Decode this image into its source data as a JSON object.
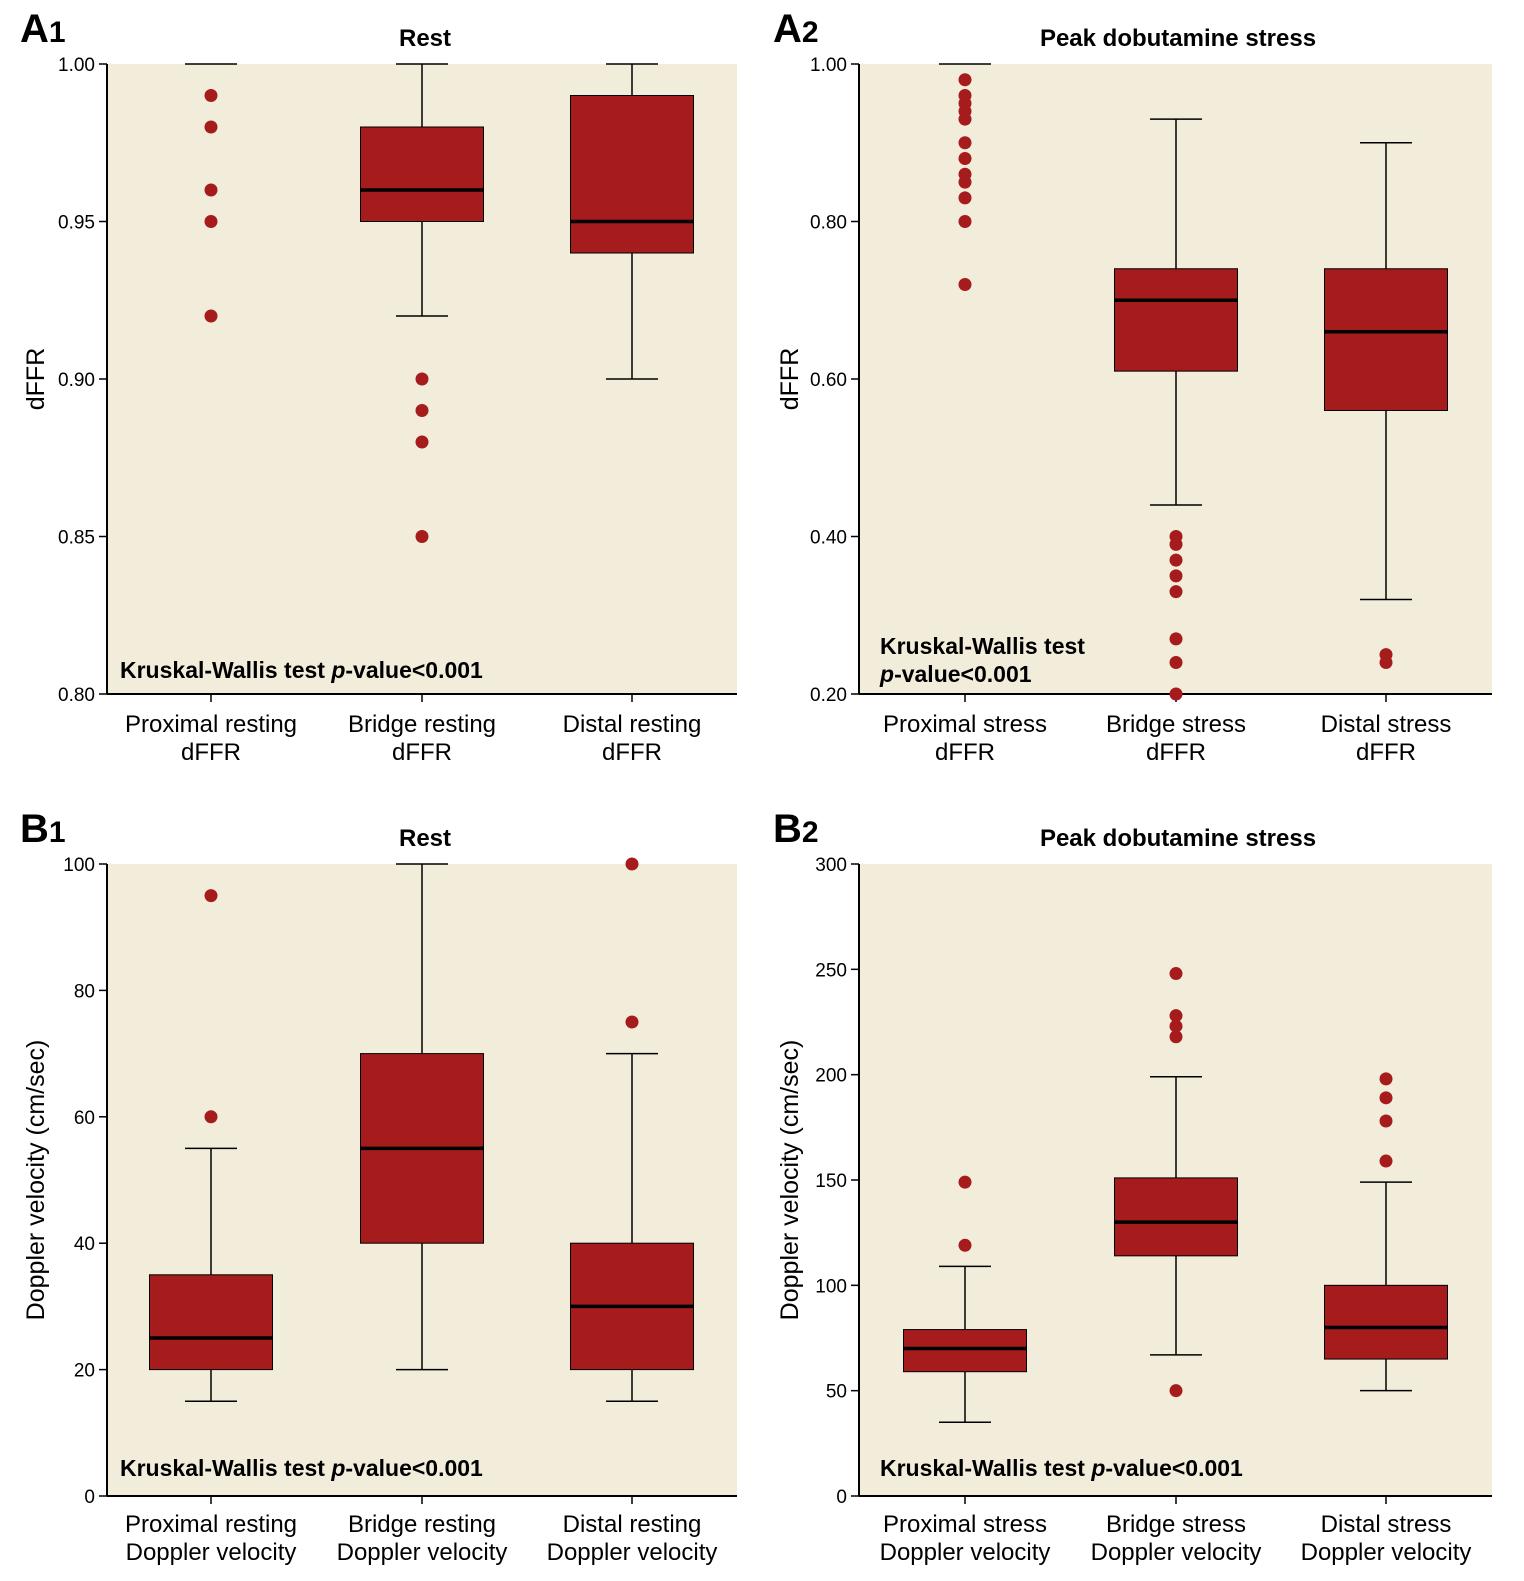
{
  "colors": {
    "plot_background": "#f2eddb",
    "box_fill": "#a61b1b",
    "outlier": "#a61b1b",
    "median": "#000000",
    "line": "#000000"
  },
  "chart_data": [
    {
      "type": "box",
      "panel_label": "A1",
      "title": "Rest",
      "ylabel": "dFFR",
      "ylim": [
        0.8,
        1.0
      ],
      "yticks": [
        0.8,
        0.85,
        0.9,
        0.95,
        1.0
      ],
      "ytick_labels": [
        "0.80",
        "0.85",
        "0.90",
        "0.95",
        "1.00"
      ],
      "categories": [
        [
          "Proximal resting",
          "dFFR"
        ],
        [
          "Bridge resting",
          "dFFR"
        ],
        [
          "Distal resting",
          "dFFR"
        ]
      ],
      "boxes": [
        {
          "whisker_low": 1.0,
          "q1": 1.0,
          "median": 1.0,
          "q3": 1.0,
          "whisker_high": 1.0,
          "outliers": [
            0.99,
            0.98,
            0.96,
            0.95,
            0.92
          ]
        },
        {
          "whisker_low": 0.92,
          "q1": 0.95,
          "median": 0.96,
          "q3": 0.98,
          "whisker_high": 1.0,
          "outliers": [
            0.9,
            0.89,
            0.88,
            0.85
          ]
        },
        {
          "whisker_low": 0.9,
          "q1": 0.94,
          "median": 0.95,
          "q3": 0.99,
          "whisker_high": 1.0,
          "outliers": []
        }
      ],
      "annotation": [
        "Kruskal-Wallis test ",
        "p",
        "-value<0.001"
      ]
    },
    {
      "type": "box",
      "panel_label": "A2",
      "title": "Peak dobutamine stress",
      "ylabel": "dFFR",
      "ylim": [
        0.2,
        1.0
      ],
      "yticks": [
        0.2,
        0.4,
        0.6,
        0.8,
        1.0
      ],
      "ytick_labels": [
        "0.20",
        "0.40",
        "0.60",
        "0.80",
        "1.00"
      ],
      "categories": [
        [
          "Proximal stress",
          "dFFR"
        ],
        [
          "Bridge stress",
          "dFFR"
        ],
        [
          "Distal stress",
          "dFFR"
        ]
      ],
      "boxes": [
        {
          "whisker_low": 1.0,
          "q1": 1.0,
          "median": 1.0,
          "q3": 1.0,
          "whisker_high": 1.0,
          "outliers": [
            0.98,
            0.96,
            0.95,
            0.94,
            0.93,
            0.9,
            0.88,
            0.86,
            0.85,
            0.83,
            0.8,
            0.72
          ]
        },
        {
          "whisker_low": 0.44,
          "q1": 0.61,
          "median": 0.7,
          "q3": 0.74,
          "whisker_high": 0.93,
          "outliers": [
            0.4,
            0.39,
            0.37,
            0.35,
            0.33,
            0.27,
            0.24,
            0.2
          ]
        },
        {
          "whisker_low": 0.32,
          "q1": 0.56,
          "median": 0.66,
          "q3": 0.74,
          "whisker_high": 0.9,
          "outliers": [
            0.25,
            0.24
          ]
        }
      ],
      "annotation": [
        "Kruskal-Wallis test",
        "p",
        "-value<0.001"
      ]
    },
    {
      "type": "box",
      "panel_label": "B1",
      "title": "Rest",
      "ylabel": "Doppler velocity (cm/sec)",
      "ylim": [
        0,
        100
      ],
      "yticks": [
        0,
        20,
        40,
        60,
        80,
        100
      ],
      "ytick_labels": [
        "0",
        "20",
        "40",
        "60",
        "80",
        "100"
      ],
      "categories": [
        [
          "Proximal resting",
          "Doppler velocity"
        ],
        [
          "Bridge resting",
          "Doppler velocity"
        ],
        [
          "Distal resting",
          "Doppler velocity"
        ]
      ],
      "boxes": [
        {
          "whisker_low": 15,
          "q1": 20,
          "median": 25,
          "q3": 35,
          "whisker_high": 55,
          "outliers": [
            95,
            60
          ]
        },
        {
          "whisker_low": 20,
          "q1": 40,
          "median": 55,
          "q3": 70,
          "whisker_high": 100,
          "outliers": []
        },
        {
          "whisker_low": 15,
          "q1": 20,
          "median": 30,
          "q3": 40,
          "whisker_high": 70,
          "outliers": [
            100,
            75
          ]
        }
      ],
      "annotation": [
        "Kruskal-Wallis test ",
        "p",
        "-value<0.001"
      ]
    },
    {
      "type": "box",
      "panel_label": "B2",
      "title": "Peak dobutamine stress",
      "ylabel": "Doppler velocity (cm/sec)",
      "ylim": [
        0,
        300
      ],
      "yticks": [
        0,
        50,
        100,
        150,
        200,
        250,
        300
      ],
      "ytick_labels": [
        "0",
        "50",
        "100",
        "150",
        "200",
        "250",
        "300"
      ],
      "categories": [
        [
          "Proximal stress",
          "Doppler velocity"
        ],
        [
          "Bridge stress",
          "Doppler velocity"
        ],
        [
          "Distal stress",
          "Doppler velocity"
        ]
      ],
      "boxes": [
        {
          "whisker_low": 35,
          "q1": 59,
          "median": 70,
          "q3": 79,
          "whisker_high": 109,
          "outliers": [
            149,
            119
          ]
        },
        {
          "whisker_low": 67,
          "q1": 114,
          "median": 130,
          "q3": 151,
          "whisker_high": 199,
          "outliers": [
            248,
            228,
            223,
            218,
            50
          ]
        },
        {
          "whisker_low": 50,
          "q1": 65,
          "median": 80,
          "q3": 100,
          "whisker_high": 149,
          "outliers": [
            198,
            189,
            178,
            159
          ]
        }
      ],
      "annotation": [
        "Kruskal-Wallis test ",
        "p",
        "-value<0.001"
      ]
    }
  ]
}
